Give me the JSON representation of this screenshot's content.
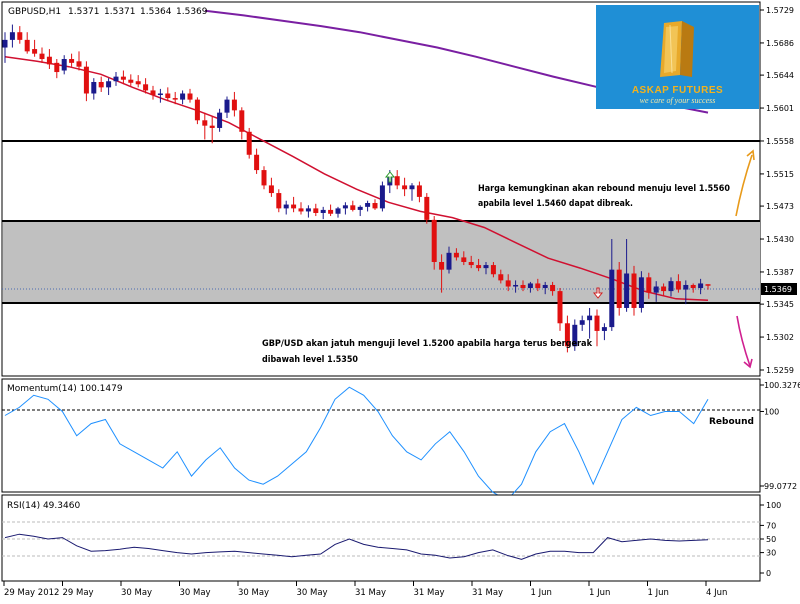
{
  "header": {
    "symbol": "GBPUSD,H1",
    "open": "1.5371",
    "high": "1.5371",
    "low": "1.5364",
    "close": "1.5369"
  },
  "logo": {
    "name": "ASKAP FUTURES",
    "tagline": "we care of your success"
  },
  "annotations": {
    "upper_line1": "Harga kemungkinan akan rebound menuju level 1.5560",
    "upper_line2": "apabila level 1.5460 dapat dibreak.",
    "lower_line1": "GBP/USD akan jatuh menguji level 1.5200 apabila harga terus bergerak",
    "lower_line2": "dibawah level 1.5350",
    "rebound": "Rebound"
  },
  "price_axis": {
    "ticks": [
      "1.5729",
      "1.5686",
      "1.5644",
      "1.5601",
      "1.5558",
      "1.5515",
      "1.5473",
      "1.5430",
      "1.5387",
      "1.5345",
      "1.5302",
      "1.5259"
    ],
    "current": "1.5369"
  },
  "momentum": {
    "label": "Momentum(14) 100.1479",
    "ticks": [
      "100.3276",
      "100",
      "99.0772"
    ]
  },
  "rsi": {
    "label": "RSI(14) 49.3460",
    "ticks": [
      "100",
      "70",
      "50",
      "30",
      "0"
    ]
  },
  "time_axis": {
    "labels": [
      "29 May 2012",
      "29 May",
      "30 May",
      "30 May",
      "30 May",
      "30 May",
      "31 May",
      "31 May",
      "31 May",
      "1 Jun",
      "1 Jun",
      "1 Jun",
      "4 Jun"
    ]
  },
  "colors": {
    "bull": "#1a1a8c",
    "bear": "#e01010",
    "ma_short": "#d01030",
    "ma_long": "#7a1fa2",
    "zone": "#c0c0c0",
    "indicator": "#1e90ff",
    "arrow_up": "#e89a1a",
    "arrow_down": "#d02090"
  },
  "chart_data": {
    "type": "candlestick",
    "symbol": "GBPUSD",
    "timeframe": "H1",
    "ylim": [
      1.5259,
      1.5729
    ],
    "levels": [
      1.5558,
      1.546,
      1.535
    ],
    "candles": [
      [
        1.568,
        1.57,
        1.566,
        1.569
      ],
      [
        1.569,
        1.571,
        1.568,
        1.57
      ],
      [
        1.57,
        1.5708,
        1.5685,
        1.569
      ],
      [
        1.569,
        1.57,
        1.5672,
        1.5675
      ],
      [
        1.5678,
        1.569,
        1.5668,
        1.5672
      ],
      [
        1.5672,
        1.568,
        1.566,
        1.5665
      ],
      [
        1.5668,
        1.5678,
        1.5652,
        1.5658
      ],
      [
        1.566,
        1.5665,
        1.564,
        1.5648
      ],
      [
        1.565,
        1.567,
        1.5645,
        1.5665
      ],
      [
        1.5665,
        1.5672,
        1.5655,
        1.566
      ],
      [
        1.5662,
        1.5675,
        1.565,
        1.5655
      ],
      [
        1.5655,
        1.5662,
        1.561,
        1.562
      ],
      [
        1.562,
        1.564,
        1.5612,
        1.5635
      ],
      [
        1.5635,
        1.5642,
        1.5622,
        1.5628
      ],
      [
        1.5628,
        1.564,
        1.5618,
        1.5636
      ],
      [
        1.5636,
        1.5648,
        1.563,
        1.5642
      ],
      [
        1.5642,
        1.565,
        1.5632,
        1.5638
      ],
      [
        1.5638,
        1.5645,
        1.563,
        1.5634
      ],
      [
        1.5636,
        1.5644,
        1.5628,
        1.5632
      ],
      [
        1.5632,
        1.564,
        1.562,
        1.5624
      ],
      [
        1.5624,
        1.563,
        1.5612,
        1.5618
      ],
      [
        1.5618,
        1.5626,
        1.5608,
        1.562
      ],
      [
        1.562,
        1.5628,
        1.561,
        1.5614
      ],
      [
        1.5614,
        1.5622,
        1.5606,
        1.5612
      ],
      [
        1.5612,
        1.5624,
        1.5606,
        1.562
      ],
      [
        1.562,
        1.5626,
        1.5608,
        1.5612
      ],
      [
        1.5612,
        1.5615,
        1.558,
        1.5585
      ],
      [
        1.5585,
        1.5595,
        1.556,
        1.5578
      ],
      [
        1.5578,
        1.559,
        1.5555,
        1.5575
      ],
      [
        1.5575,
        1.56,
        1.557,
        1.5595
      ],
      [
        1.5595,
        1.5616,
        1.5588,
        1.5612
      ],
      [
        1.5612,
        1.5622,
        1.559,
        1.5598
      ],
      [
        1.5598,
        1.5602,
        1.556,
        1.557
      ],
      [
        1.557,
        1.5575,
        1.5535,
        1.554
      ],
      [
        1.554,
        1.5548,
        1.5515,
        1.552
      ],
      [
        1.552,
        1.5525,
        1.5495,
        1.55
      ],
      [
        1.55,
        1.551,
        1.5485,
        1.549
      ],
      [
        1.549,
        1.5495,
        1.5465,
        1.547
      ],
      [
        1.547,
        1.548,
        1.5462,
        1.5475
      ],
      [
        1.5475,
        1.5485,
        1.5465,
        1.547
      ],
      [
        1.547,
        1.5478,
        1.5462,
        1.5466
      ],
      [
        1.5466,
        1.5474,
        1.5458,
        1.547
      ],
      [
        1.547,
        1.5476,
        1.546,
        1.5464
      ],
      [
        1.5464,
        1.5472,
        1.5456,
        1.5468
      ],
      [
        1.5468,
        1.5475,
        1.546,
        1.5463
      ],
      [
        1.5463,
        1.5472,
        1.5458,
        1.547
      ],
      [
        1.547,
        1.5478,
        1.5462,
        1.5474
      ],
      [
        1.5474,
        1.548,
        1.5466,
        1.5468
      ],
      [
        1.5468,
        1.5474,
        1.546,
        1.5472
      ],
      [
        1.5472,
        1.548,
        1.5466,
        1.5477
      ],
      [
        1.5477,
        1.5482,
        1.5468,
        1.547
      ],
      [
        1.547,
        1.5505,
        1.5466,
        1.55
      ],
      [
        1.55,
        1.552,
        1.549,
        1.5512
      ],
      [
        1.5512,
        1.552,
        1.5495,
        1.55
      ],
      [
        1.55,
        1.551,
        1.5486,
        1.5495
      ],
      [
        1.5495,
        1.5503,
        1.548,
        1.55
      ],
      [
        1.55,
        1.5505,
        1.5478,
        1.5485
      ],
      [
        1.5485,
        1.549,
        1.545,
        1.5455
      ],
      [
        1.5455,
        1.546,
        1.539,
        1.54
      ],
      [
        1.54,
        1.541,
        1.536,
        1.539
      ],
      [
        1.539,
        1.542,
        1.5385,
        1.5412
      ],
      [
        1.5412,
        1.5418,
        1.5402,
        1.5406
      ],
      [
        1.5406,
        1.5414,
        1.5396,
        1.54
      ],
      [
        1.54,
        1.5408,
        1.5392,
        1.5396
      ],
      [
        1.5396,
        1.5404,
        1.5388,
        1.5392
      ],
      [
        1.5392,
        1.54,
        1.5384,
        1.5396
      ],
      [
        1.5396,
        1.54,
        1.538,
        1.5384
      ],
      [
        1.5384,
        1.539,
        1.5372,
        1.5376
      ],
      [
        1.5376,
        1.5384,
        1.5362,
        1.5368
      ],
      [
        1.5368,
        1.5376,
        1.536,
        1.537
      ],
      [
        1.537,
        1.5376,
        1.5362,
        1.5366
      ],
      [
        1.5366,
        1.5374,
        1.536,
        1.5372
      ],
      [
        1.5372,
        1.5378,
        1.5362,
        1.5366
      ],
      [
        1.5366,
        1.5374,
        1.5358,
        1.537
      ],
      [
        1.537,
        1.5374,
        1.5356,
        1.5362
      ],
      [
        1.5362,
        1.5366,
        1.531,
        1.532
      ],
      [
        1.532,
        1.533,
        1.5282,
        1.529
      ],
      [
        1.529,
        1.5325,
        1.5284,
        1.5318
      ],
      [
        1.5318,
        1.533,
        1.531,
        1.5324
      ],
      [
        1.5324,
        1.534,
        1.53,
        1.533
      ],
      [
        1.533,
        1.5338,
        1.529,
        1.531
      ],
      [
        1.531,
        1.532,
        1.5298,
        1.5315
      ],
      [
        1.5315,
        1.543,
        1.531,
        1.539
      ],
      [
        1.539,
        1.54,
        1.533,
        1.534
      ],
      [
        1.534,
        1.543,
        1.5335,
        1.5385
      ],
      [
        1.5385,
        1.5395,
        1.533,
        1.534
      ],
      [
        1.534,
        1.5388,
        1.5334,
        1.538
      ],
      [
        1.538,
        1.5386,
        1.5352,
        1.536
      ],
      [
        1.536,
        1.5375,
        1.5348,
        1.5368
      ],
      [
        1.5368,
        1.5372,
        1.5356,
        1.5362
      ],
      [
        1.5362,
        1.538,
        1.5355,
        1.5375
      ],
      [
        1.5375,
        1.5384,
        1.536,
        1.5364
      ],
      [
        1.5364,
        1.5376,
        1.5345,
        1.537
      ],
      [
        1.537,
        1.5372,
        1.536,
        1.5366
      ],
      [
        1.5366,
        1.5378,
        1.5358,
        1.5372
      ],
      [
        1.5371,
        1.5371,
        1.5364,
        1.5369
      ]
    ],
    "ma_short": [
      1.5668,
      1.5662,
      1.5655,
      1.5645,
      1.5628,
      1.5612,
      1.5598,
      1.5582,
      1.556,
      1.5538,
      1.5515,
      1.5495,
      1.5478,
      1.5466,
      1.5458,
      1.5445,
      1.5425,
      1.5405,
      1.5392,
      1.5378,
      1.5362,
      1.5352,
      1.535
    ],
    "ma_long": [
      1.5728,
      1.5722,
      1.5715,
      1.5708,
      1.57,
      1.569,
      1.568,
      1.5668,
      1.5655,
      1.5642,
      1.563,
      1.5618,
      1.5605,
      1.5595
    ],
    "momentum": [
      99.95,
      100.05,
      100.2,
      100.15,
      100.0,
      99.7,
      99.85,
      99.9,
      99.6,
      99.5,
      99.4,
      99.3,
      99.5,
      99.2,
      99.4,
      99.55,
      99.3,
      99.15,
      99.1,
      99.2,
      99.35,
      99.5,
      99.8,
      100.15,
      100.3,
      100.2,
      100.0,
      99.7,
      99.5,
      99.4,
      99.6,
      99.75,
      99.5,
      99.2,
      99.0,
      98.9,
      99.1,
      99.5,
      99.75,
      99.85,
      99.5,
      99.1,
      99.5,
      99.9,
      100.05,
      99.95,
      100.0,
      100.0,
      99.85,
      100.15
    ],
    "rsi": [
      52,
      57,
      54,
      50,
      52,
      40,
      32,
      33,
      35,
      38,
      36,
      33,
      30,
      28,
      30,
      31,
      32,
      30,
      28,
      26,
      24,
      26,
      28,
      42,
      50,
      42,
      38,
      36,
      34,
      28,
      26,
      22,
      24,
      30,
      34,
      26,
      20,
      28,
      32,
      32,
      30,
      30,
      52,
      46,
      48,
      50,
      48,
      47,
      48,
      49
    ]
  }
}
